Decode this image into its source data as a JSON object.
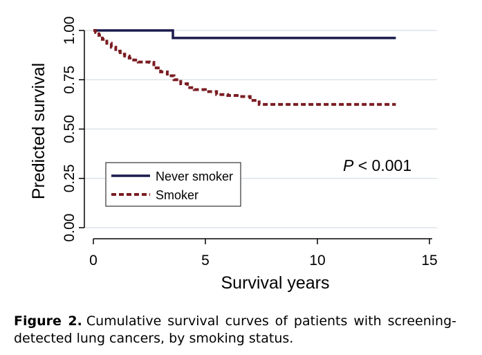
{
  "chart_data": {
    "type": "line",
    "xlabel": "Survival years",
    "ylabel": "Predicted survival",
    "xlim": [
      0,
      15
    ],
    "ylim": [
      0,
      1
    ],
    "xticks": [
      "0",
      "5",
      "10",
      "15"
    ],
    "yticks": [
      "0.00",
      "0.25",
      "0.50",
      "0.75",
      "1.00"
    ],
    "grid": "horizontal",
    "legend_position": "lower-left",
    "series": [
      {
        "name": "Never smoker",
        "color": "#1a1a4e",
        "style": "solid",
        "x": [
          0,
          3.55,
          3.55,
          13.5
        ],
        "y": [
          1.0,
          1.0,
          0.962,
          0.962
        ]
      },
      {
        "name": "Smoker",
        "color": "#7a1c22",
        "style": "dashed",
        "x": [
          0,
          0.1,
          0.25,
          0.4,
          0.6,
          0.8,
          1.0,
          1.2,
          1.4,
          1.6,
          1.8,
          2.0,
          2.5,
          2.7,
          3.0,
          3.3,
          3.6,
          3.9,
          4.2,
          4.5,
          5.0,
          5.5,
          6.0,
          6.5,
          7.0,
          7.4,
          8.0,
          9.0,
          10.0,
          11.0,
          12.0,
          13.5
        ],
        "y": [
          1.0,
          0.99,
          0.975,
          0.955,
          0.935,
          0.915,
          0.895,
          0.88,
          0.87,
          0.86,
          0.85,
          0.84,
          0.838,
          0.81,
          0.79,
          0.77,
          0.75,
          0.73,
          0.71,
          0.7,
          0.69,
          0.675,
          0.67,
          0.665,
          0.645,
          0.625,
          0.625,
          0.625,
          0.625,
          0.625,
          0.625,
          0.625
        ]
      }
    ],
    "annotation": {
      "p_italic": "P",
      "rest": " < 0.001"
    }
  },
  "caption": {
    "label": "Figure 2.",
    "text": "Cumulative survival curves of patients with screening-detected lung cancers, by smoking status."
  }
}
